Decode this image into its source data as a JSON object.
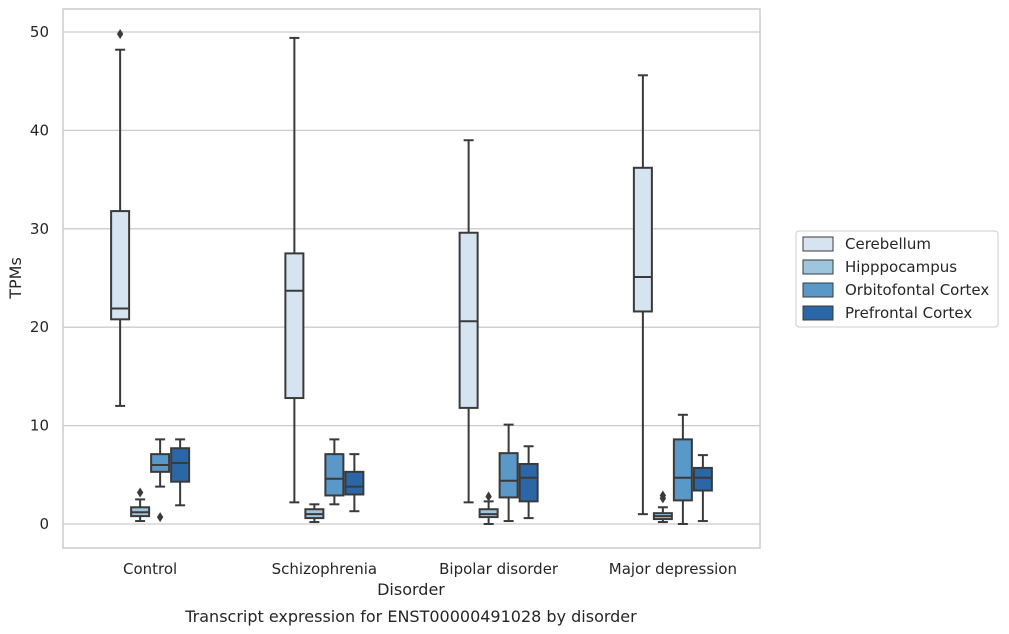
{
  "chart_data": {
    "type": "box",
    "title": "Transcript expression for ENST00000491028 by disorder",
    "xlabel": "Disorder",
    "ylabel": "TPMs",
    "ylim": [
      -2.4,
      52.4
    ],
    "yticks": [
      0,
      10,
      20,
      30,
      40,
      50
    ],
    "grid": "horizontal",
    "legend_position": "right",
    "categories": [
      "Control",
      "Schizophrenia",
      "Bipolar disorder",
      "Major depression"
    ],
    "series": [
      {
        "name": "Cerebellum",
        "color": "#d6e4f2",
        "boxes": [
          {
            "whislo": 12.0,
            "q1": 20.8,
            "med": 21.9,
            "q3": 31.8,
            "whishi": 48.2,
            "fliers": [
              49.8
            ]
          },
          {
            "whislo": 2.2,
            "q1": 12.8,
            "med": 23.7,
            "q3": 27.5,
            "whishi": 49.4,
            "fliers": []
          },
          {
            "whislo": 2.2,
            "q1": 11.8,
            "med": 20.6,
            "q3": 29.6,
            "whishi": 39.0,
            "fliers": []
          },
          {
            "whislo": 1.0,
            "q1": 21.6,
            "med": 25.1,
            "q3": 36.2,
            "whishi": 45.6,
            "fliers": []
          }
        ]
      },
      {
        "name": "Hipppocampus",
        "color": "#9ec5de",
        "boxes": [
          {
            "whislo": 0.3,
            "q1": 0.8,
            "med": 1.2,
            "q3": 1.7,
            "whishi": 2.5,
            "fliers": [
              3.2
            ]
          },
          {
            "whislo": 0.2,
            "q1": 0.6,
            "med": 1.0,
            "q3": 1.5,
            "whishi": 2.0,
            "fliers": []
          },
          {
            "whislo": 0.0,
            "q1": 0.7,
            "med": 1.0,
            "q3": 1.5,
            "whishi": 2.3,
            "fliers": [
              2.8
            ]
          },
          {
            "whislo": 0.2,
            "q1": 0.5,
            "med": 0.8,
            "q3": 1.1,
            "whishi": 1.7,
            "fliers": [
              2.6,
              2.9
            ]
          }
        ]
      },
      {
        "name": "Orbitofontal Cortex",
        "color": "#5998c7",
        "boxes": [
          {
            "whislo": 3.8,
            "q1": 5.3,
            "med": 6.0,
            "q3": 7.1,
            "whishi": 8.6,
            "fliers": [
              0.7
            ]
          },
          {
            "whislo": 2.0,
            "q1": 2.9,
            "med": 4.6,
            "q3": 7.1,
            "whishi": 8.6,
            "fliers": []
          },
          {
            "whislo": 0.3,
            "q1": 2.7,
            "med": 4.4,
            "q3": 7.2,
            "whishi": 10.1,
            "fliers": []
          },
          {
            "whislo": 0.0,
            "q1": 2.4,
            "med": 4.7,
            "q3": 8.6,
            "whishi": 11.1,
            "fliers": []
          }
        ]
      },
      {
        "name": "Prefrontal Cortex",
        "color": "#2b66a6",
        "boxes": [
          {
            "whislo": 1.9,
            "q1": 4.3,
            "med": 6.2,
            "q3": 7.7,
            "whishi": 8.6,
            "fliers": []
          },
          {
            "whislo": 1.3,
            "q1": 3.0,
            "med": 3.8,
            "q3": 5.3,
            "whishi": 7.1,
            "fliers": []
          },
          {
            "whislo": 0.6,
            "q1": 2.3,
            "med": 4.7,
            "q3": 6.1,
            "whishi": 7.9,
            "fliers": []
          },
          {
            "whislo": 0.3,
            "q1": 3.4,
            "med": 4.7,
            "q3": 5.7,
            "whishi": 7.0,
            "fliers": []
          }
        ]
      }
    ]
  }
}
